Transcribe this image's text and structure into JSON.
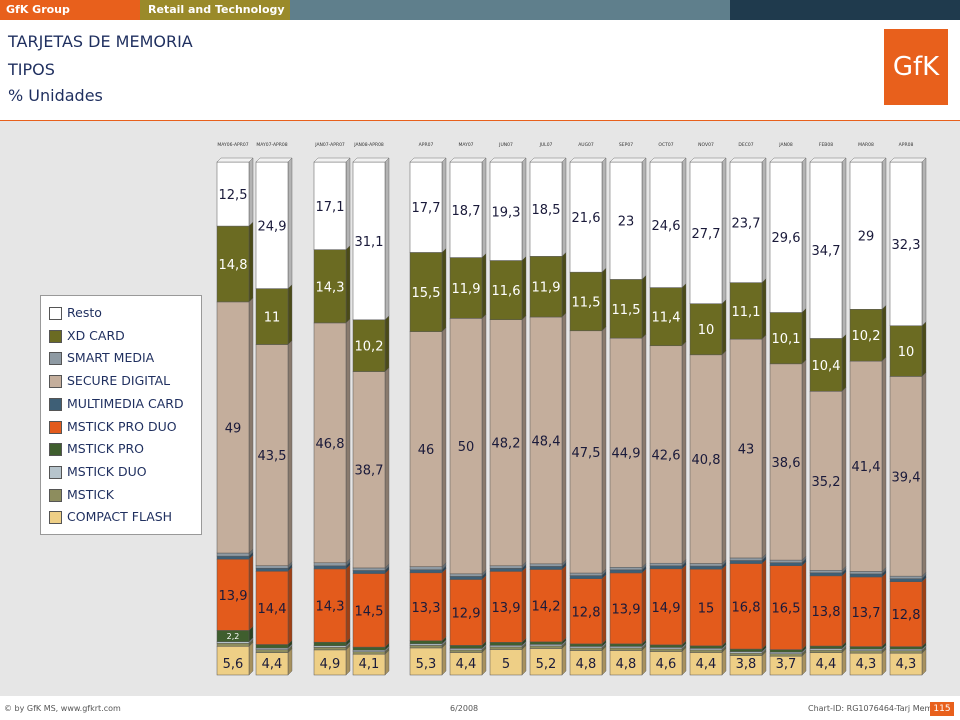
{
  "header": {
    "brand": "GfK Group",
    "section": "Retail and Technology"
  },
  "titles": [
    "TARJETAS DE MEMORIA",
    "TIPOS",
    "% Unidades"
  ],
  "logo_text": "GfK",
  "footer": {
    "left": "© by GfK MS, www.gfkrt.com",
    "mid": "6/2008",
    "right": "Chart-ID: RG1076464-Tarj Mem  115",
    "page": "115"
  },
  "colors": {
    "Resto": "#ffffff",
    "XD CARD": "#6b6b22",
    "SMART MEDIA": "#8e9aa3",
    "SECURE DIGITAL": "#c4ae9c",
    "MULTIMEDIA CARD": "#3e5f76",
    "MSTICK PRO DUO": "#e35b1c",
    "MSTICK PRO": "#3f5e2e",
    "MSTICK DUO": "#b6c4cc",
    "MSTICK": "#8d8d5e",
    "COMPACT FLASH": "#eecf86"
  },
  "chart_data": {
    "type": "bar",
    "stacked": true,
    "ylim": [
      0,
      100
    ],
    "legend_placement": "left",
    "categories": [
      "MAY06-APR07",
      "MAY07-APR08",
      "JAN07-APR07",
      "JAN08-APR08",
      "APR07",
      "MAY07",
      "JUN07",
      "JUL07",
      "AUG07",
      "SEP07",
      "OCT07",
      "NOV07",
      "DEC07",
      "JAN08",
      "FEB08",
      "MAR08",
      "APR08"
    ],
    "legend_order": [
      "Resto",
      "XD CARD",
      "SMART MEDIA",
      "SECURE DIGITAL",
      "MULTIMEDIA CARD",
      "MSTICK PRO DUO",
      "MSTICK PRO",
      "MSTICK DUO",
      "MSTICK",
      "COMPACT FLASH"
    ],
    "series": [
      {
        "name": "COMPACT FLASH",
        "values": [
          5.6,
          4.4,
          4.9,
          4.1,
          5.3,
          4.4,
          5,
          5.2,
          4.8,
          4.8,
          4.6,
          4.4,
          3.8,
          3.7,
          4.4,
          4.3,
          4.3
        ]
      },
      {
        "name": "MSTICK",
        "values": [
          0.6,
          0.6,
          0.5,
          0.5,
          0.5,
          0.5,
          0.5,
          0.5,
          0.5,
          0.5,
          0.5,
          0.5,
          0.5,
          0.5,
          0.5,
          0.5,
          0.5
        ]
      },
      {
        "name": "MSTICK DUO",
        "values": [
          0.3,
          0.3,
          0.3,
          0.3,
          0.3,
          0.3,
          0.3,
          0.3,
          0.3,
          0.3,
          0.3,
          0.3,
          0.3,
          0.3,
          0.3,
          0.3,
          0.3
        ]
      },
      {
        "name": "MSTICK PRO",
        "values": [
          2.2,
          0.7,
          0.7,
          0.6,
          0.6,
          0.6,
          0.6,
          0.5,
          0.5,
          0.5,
          0.5,
          0.5,
          0.5,
          0.5,
          0.5,
          0.5,
          0.5
        ]
      },
      {
        "name": "MSTICK PRO DUO",
        "values": [
          13.9,
          14.4,
          14.3,
          14.5,
          13.3,
          12.9,
          13.9,
          14.2,
          12.8,
          13.9,
          14.9,
          15,
          16.8,
          16.5,
          13.8,
          13.7,
          12.8
        ]
      },
      {
        "name": "MULTIMEDIA CARD",
        "values": [
          0.6,
          0.6,
          0.6,
          0.6,
          0.6,
          0.6,
          0.6,
          0.6,
          0.6,
          0.6,
          0.6,
          0.6,
          0.6,
          0.6,
          0.6,
          0.6,
          0.6
        ]
      },
      {
        "name": "SMART MEDIA",
        "values": [
          0.6,
          0.5,
          0.6,
          0.5,
          0.6,
          0.5,
          0.5,
          0.5,
          0.5,
          0.5,
          0.5,
          0.5,
          0.5,
          0.5,
          0.5,
          0.5,
          0.5
        ]
      },
      {
        "name": "SECURE DIGITAL",
        "values": [
          49,
          43.5,
          46.8,
          38.7,
          46,
          50,
          48.2,
          48.4,
          47.5,
          44.9,
          42.6,
          40.8,
          43,
          38.6,
          35.2,
          41.4,
          39.4
        ]
      },
      {
        "name": "XD CARD",
        "values": [
          14.8,
          11,
          14.3,
          10.2,
          15.5,
          11.9,
          11.6,
          11.9,
          11.5,
          11.5,
          11.4,
          10,
          11.1,
          10.1,
          10.4,
          10.2,
          10
        ]
      },
      {
        "name": "Resto",
        "values": [
          12.5,
          24.9,
          17.1,
          31.1,
          17.7,
          18.7,
          19.3,
          18.5,
          21.6,
          23,
          24.6,
          27.7,
          23.7,
          29.6,
          34.7,
          29,
          32.3
        ]
      }
    ],
    "labeled_series": [
      "COMPACT FLASH",
      "MSTICK PRO DUO",
      "SECURE DIGITAL",
      "XD CARD",
      "Resto"
    ],
    "extra_labels": [
      {
        "category": "MAY06-APR07",
        "series": "MSTICK PRO",
        "value": 2.2
      }
    ]
  }
}
